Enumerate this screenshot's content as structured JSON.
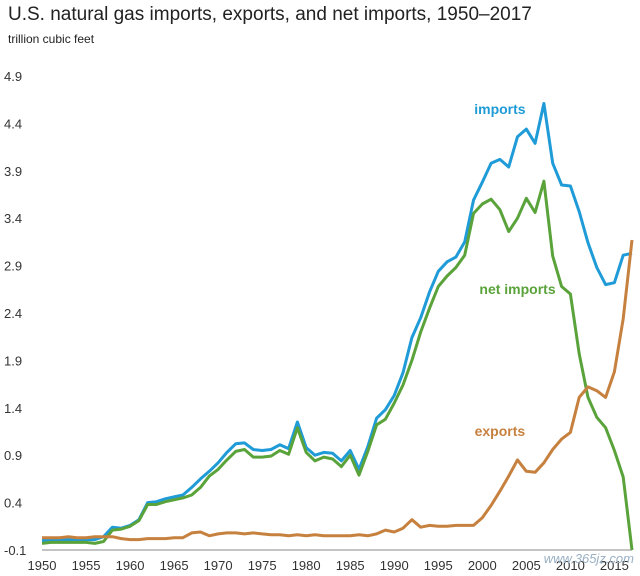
{
  "chart_data": {
    "type": "line",
    "title": "U.S. natural gas imports, exports, and net imports, 1950–2017",
    "subtitle": "trillion cubic feet",
    "xlabel": "",
    "ylabel": "",
    "xlim": [
      1950,
      2017
    ],
    "ylim": [
      -0.1,
      4.9
    ],
    "yticks": [
      "-0.1",
      "0.4",
      "0.9",
      "1.4",
      "1.9",
      "2.4",
      "2.9",
      "3.4",
      "3.9",
      "4.4",
      "4.9"
    ],
    "xticks": [
      "1950",
      "1955",
      "1960",
      "1965",
      "1970",
      "1975",
      "1980",
      "1985",
      "1990",
      "1995",
      "2000",
      "2005",
      "2010",
      "2015"
    ],
    "grid": false,
    "x": [
      1950,
      1951,
      1952,
      1953,
      1954,
      1955,
      1956,
      1957,
      1958,
      1959,
      1960,
      1961,
      1962,
      1963,
      1964,
      1965,
      1966,
      1967,
      1968,
      1969,
      1970,
      1971,
      1972,
      1973,
      1974,
      1975,
      1976,
      1977,
      1978,
      1979,
      1980,
      1981,
      1982,
      1983,
      1984,
      1985,
      1986,
      1987,
      1988,
      1989,
      1990,
      1991,
      1992,
      1993,
      1994,
      1995,
      1996,
      1997,
      1998,
      1999,
      2000,
      2001,
      2002,
      2003,
      2004,
      2005,
      2006,
      2007,
      2008,
      2009,
      2010,
      2011,
      2012,
      2013,
      2014,
      2015,
      2016,
      2017
    ],
    "series": [
      {
        "name": "imports",
        "color": "#1f9bd7",
        "labelPos": [
          2002,
          4.5
        ],
        "values": [
          0.0,
          0.0,
          0.01,
          0.01,
          0.01,
          0.01,
          0.01,
          0.04,
          0.14,
          0.13,
          0.16,
          0.22,
          0.4,
          0.41,
          0.44,
          0.46,
          0.48,
          0.56,
          0.65,
          0.73,
          0.82,
          0.93,
          1.02,
          1.03,
          0.96,
          0.95,
          0.96,
          1.01,
          0.97,
          1.25,
          0.98,
          0.9,
          0.93,
          0.92,
          0.84,
          0.95,
          0.75,
          0.99,
          1.29,
          1.38,
          1.53,
          1.77,
          2.14,
          2.35,
          2.62,
          2.84,
          2.94,
          2.99,
          3.15,
          3.59,
          3.78,
          3.98,
          4.02,
          3.94,
          4.26,
          4.34,
          4.19,
          4.61,
          3.98,
          3.75,
          3.74,
          3.47,
          3.14,
          2.88,
          2.7,
          2.72,
          3.01,
          3.03
        ]
      },
      {
        "name": "net imports",
        "color": "#5aa33b",
        "labelPos": [
          2004,
          2.6
        ],
        "values": [
          -0.03,
          -0.02,
          -0.02,
          -0.02,
          -0.02,
          -0.02,
          -0.03,
          -0.01,
          0.11,
          0.12,
          0.15,
          0.21,
          0.38,
          0.38,
          0.41,
          0.43,
          0.45,
          0.48,
          0.56,
          0.68,
          0.75,
          0.85,
          0.94,
          0.96,
          0.88,
          0.88,
          0.89,
          0.95,
          0.91,
          1.19,
          0.93,
          0.84,
          0.88,
          0.86,
          0.78,
          0.9,
          0.69,
          0.94,
          1.22,
          1.28,
          1.45,
          1.64,
          1.9,
          2.2,
          2.45,
          2.68,
          2.79,
          2.88,
          3.01,
          3.45,
          3.55,
          3.6,
          3.49,
          3.26,
          3.4,
          3.61,
          3.46,
          3.79,
          3.0,
          2.68,
          2.6,
          1.97,
          1.51,
          1.3,
          1.19,
          0.95,
          0.67,
          -0.1
        ]
      },
      {
        "name": "exports",
        "color": "#c7813f",
        "labelPos": [
          2002,
          1.1
        ],
        "values": [
          0.03,
          0.03,
          0.03,
          0.04,
          0.03,
          0.03,
          0.04,
          0.04,
          0.04,
          0.02,
          0.01,
          0.01,
          0.02,
          0.02,
          0.02,
          0.03,
          0.03,
          0.08,
          0.09,
          0.05,
          0.07,
          0.08,
          0.08,
          0.07,
          0.08,
          0.07,
          0.06,
          0.06,
          0.05,
          0.06,
          0.05,
          0.06,
          0.05,
          0.05,
          0.05,
          0.05,
          0.06,
          0.05,
          0.07,
          0.11,
          0.09,
          0.13,
          0.22,
          0.14,
          0.16,
          0.15,
          0.15,
          0.16,
          0.16,
          0.16,
          0.24,
          0.37,
          0.52,
          0.68,
          0.85,
          0.73,
          0.72,
          0.82,
          0.96,
          1.07,
          1.14,
          1.51,
          1.62,
          1.58,
          1.51,
          1.78,
          2.34,
          3.17
        ]
      }
    ]
  },
  "watermark": "www.365jz.com"
}
